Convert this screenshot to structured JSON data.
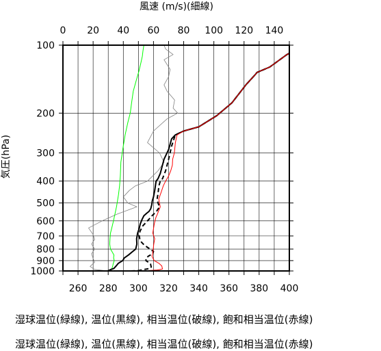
{
  "chart_data": {
    "type": "line",
    "top_axis_label": "風速 (m/s)(細線)",
    "ylabel": "気圧(hPa)",
    "y_scale": "log",
    "y_range": [
      1000,
      100
    ],
    "y_ticks": [
      100,
      200,
      300,
      400,
      500,
      600,
      700,
      800,
      900,
      1000
    ],
    "x_bottom_range": [
      250,
      400
    ],
    "x_bottom_ticks": [
      260,
      280,
      300,
      320,
      340,
      360,
      380,
      400
    ],
    "x_top_range": [
      0,
      150
    ],
    "x_top_ticks": [
      0,
      20,
      40,
      60,
      80,
      100,
      120,
      140
    ],
    "grid": true,
    "series": [
      {
        "axis": "top",
        "style": "thin-gray",
        "color": "#808080",
        "points": [
          [
            29.8,
            1000
          ],
          [
            21,
            985
          ],
          [
            18,
            955
          ],
          [
            21,
            915
          ],
          [
            20,
            880
          ],
          [
            19,
            840
          ],
          [
            21,
            800
          ],
          [
            19,
            760
          ],
          [
            21,
            725
          ],
          [
            20,
            690
          ],
          [
            17,
            645
          ],
          [
            26,
            600
          ],
          [
            36,
            560
          ],
          [
            49,
            520
          ],
          [
            43,
            500
          ],
          [
            40,
            470
          ],
          [
            44,
            440
          ],
          [
            48,
            420
          ],
          [
            56,
            400
          ],
          [
            63,
            360
          ],
          [
            67,
            330
          ],
          [
            64,
            300
          ],
          [
            56,
            270
          ],
          [
            60,
            240
          ],
          [
            69,
            212
          ],
          [
            76,
            200
          ],
          [
            73,
            190
          ],
          [
            74,
            175
          ],
          [
            69,
            160
          ],
          [
            67,
            150
          ],
          [
            70,
            138
          ],
          [
            71,
            128
          ],
          [
            67,
            116
          ],
          [
            73,
            110
          ],
          [
            68,
            104
          ],
          [
            67,
            100
          ]
        ]
      },
      {
        "axis": "bottom",
        "style": "thin-green",
        "color": "#00ff00",
        "points": [
          [
            280.0,
            1000
          ],
          [
            282.5,
            975
          ],
          [
            283.0,
            950
          ],
          [
            283.4,
            925
          ],
          [
            284.0,
            900
          ],
          [
            283.6,
            875
          ],
          [
            283.8,
            850
          ],
          [
            282.5,
            820
          ],
          [
            281.5,
            800
          ],
          [
            281.0,
            760
          ],
          [
            281.2,
            720
          ],
          [
            281.5,
            680
          ],
          [
            282.5,
            640
          ],
          [
            283.5,
            600
          ],
          [
            285.5,
            520
          ],
          [
            286.8,
            460
          ],
          [
            287.5,
            420
          ],
          [
            288.0,
            380
          ],
          [
            288.4,
            330
          ],
          [
            289.6,
            290
          ],
          [
            291.2,
            250
          ],
          [
            293.0,
            220
          ],
          [
            294.6,
            200
          ],
          [
            295.5,
            180
          ],
          [
            296.6,
            160
          ],
          [
            299.0,
            140
          ],
          [
            300.4,
            130
          ],
          [
            301.6,
            120
          ],
          [
            302.6,
            112
          ],
          [
            303.0,
            106
          ],
          [
            303.6,
            100
          ]
        ]
      },
      {
        "axis": "bottom",
        "style": "thick-black",
        "color": "#000000",
        "points": [
          [
            279.6,
            1000
          ],
          [
            281.5,
            987
          ],
          [
            283.7,
            975
          ],
          [
            285.3,
            950
          ],
          [
            286.7,
            925
          ],
          [
            289.6,
            900
          ],
          [
            290.7,
            875
          ],
          [
            293.4,
            850
          ],
          [
            296.2,
            820
          ],
          [
            298.2,
            800
          ],
          [
            299.0,
            760
          ],
          [
            298.8,
            720
          ],
          [
            299.5,
            680
          ],
          [
            300.5,
            650
          ],
          [
            301.2,
            620
          ],
          [
            302.5,
            590
          ],
          [
            303.6,
            570
          ],
          [
            305.5,
            555
          ],
          [
            307.0,
            545
          ],
          [
            308.2,
            530
          ],
          [
            308.8,
            510
          ],
          [
            309.2,
            490
          ],
          [
            310.0,
            470
          ],
          [
            310.8,
            440
          ],
          [
            311.7,
            400
          ],
          [
            313.0,
            390
          ],
          [
            314.5,
            370
          ],
          [
            317.0,
            320
          ],
          [
            320.0,
            290
          ],
          [
            322.0,
            260
          ],
          [
            324.4,
            250
          ],
          [
            330.0,
            240
          ],
          [
            340.0,
            230
          ],
          [
            352.0,
            205
          ],
          [
            362.0,
            180
          ],
          [
            371.2,
            150
          ],
          [
            377.0,
            136
          ],
          [
            378.6,
            132
          ],
          [
            381.0,
            130
          ],
          [
            387.0,
            125
          ],
          [
            398.4,
            110
          ],
          [
            404.0,
            105
          ],
          [
            410.4,
            104
          ]
        ]
      },
      {
        "axis": "bottom",
        "style": "dashed-black",
        "color": "#000000",
        "points": [
          [
            295.0,
            1000
          ],
          [
            298.0,
            998
          ],
          [
            300.5,
            995
          ],
          [
            302.0,
            990
          ],
          [
            304.7,
            983
          ],
          [
            307.8,
            975
          ],
          [
            308.5,
            960
          ],
          [
            308.0,
            930
          ],
          [
            305.0,
            900
          ],
          [
            305.0,
            880
          ],
          [
            306.6,
            860
          ],
          [
            309.3,
            840
          ],
          [
            310.0,
            820
          ],
          [
            307.7,
            800
          ],
          [
            304.0,
            770
          ],
          [
            302.0,
            745
          ],
          [
            301.0,
            725
          ],
          [
            300.5,
            695
          ],
          [
            301.1,
            665
          ],
          [
            302.0,
            650
          ],
          [
            303.0,
            630
          ],
          [
            305.0,
            610
          ],
          [
            307.0,
            590
          ],
          [
            309.0,
            570
          ],
          [
            312.0,
            545
          ],
          [
            314.0,
            520
          ],
          [
            313.0,
            500
          ],
          [
            312.4,
            480
          ],
          [
            313.0,
            455
          ],
          [
            313.6,
            420
          ],
          [
            314.5,
            400
          ],
          [
            316.0,
            390
          ],
          [
            318.0,
            360
          ],
          [
            320.0,
            320
          ],
          [
            322.0,
            280
          ],
          [
            324.4,
            250
          ],
          [
            330.0,
            240
          ],
          [
            340.0,
            230
          ],
          [
            352.0,
            205
          ],
          [
            362.0,
            180
          ],
          [
            371.2,
            150
          ],
          [
            377.0,
            136
          ],
          [
            378.6,
            132
          ],
          [
            381.0,
            130
          ],
          [
            387.0,
            125
          ],
          [
            398.4,
            110
          ],
          [
            404.0,
            105
          ],
          [
            410.4,
            104
          ]
        ]
      },
      {
        "axis": "bottom",
        "style": "thin-red",
        "color": "#ff0000",
        "points": [
          [
            303.0,
            1000
          ],
          [
            308.0,
            995
          ],
          [
            312.5,
            990
          ],
          [
            316.0,
            980
          ],
          [
            315.5,
            950
          ],
          [
            313.6,
            925
          ],
          [
            310.5,
            900
          ],
          [
            309.5,
            875
          ],
          [
            309.0,
            860
          ],
          [
            309.4,
            840
          ],
          [
            309.8,
            800
          ],
          [
            310.2,
            760
          ],
          [
            310.8,
            720
          ],
          [
            310.2,
            700
          ],
          [
            309.5,
            680
          ],
          [
            310.0,
            650
          ],
          [
            310.5,
            620
          ],
          [
            311.0,
            600
          ],
          [
            311.6,
            580
          ],
          [
            312.6,
            560
          ],
          [
            313.5,
            540
          ],
          [
            314.5,
            520
          ],
          [
            314.0,
            500
          ],
          [
            313.5,
            480
          ],
          [
            315.0,
            450
          ],
          [
            316.5,
            420
          ],
          [
            318.0,
            400
          ],
          [
            320.0,
            380
          ],
          [
            321.4,
            360
          ],
          [
            322.5,
            340
          ],
          [
            322.7,
            320
          ],
          [
            323.8,
            300
          ],
          [
            324.5,
            270
          ],
          [
            325.6,
            250
          ],
          [
            330.0,
            240
          ],
          [
            340.0,
            230
          ],
          [
            352.0,
            205
          ],
          [
            362.0,
            180
          ],
          [
            371.2,
            150
          ],
          [
            377.0,
            136
          ],
          [
            378.6,
            132
          ],
          [
            381.0,
            130
          ],
          [
            387.0,
            125
          ],
          [
            398.4,
            110
          ],
          [
            404.0,
            105
          ],
          [
            410.4,
            104
          ]
        ]
      }
    ]
  },
  "captions": [
    "湿球温位(緑線), 温位(黒線), 相当温位(破線), 飽和相当温位(赤線)",
    "湿球温位(緑線), 温位(黒線), 相当温位(破線), 飽和相当温位(赤線)"
  ]
}
